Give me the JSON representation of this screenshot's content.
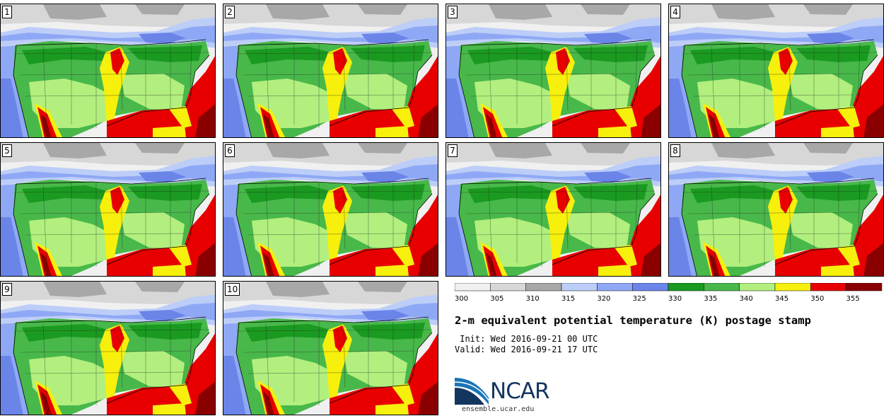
{
  "panels": [
    {
      "label": "1"
    },
    {
      "label": "2"
    },
    {
      "label": "3"
    },
    {
      "label": "4"
    },
    {
      "label": "5"
    },
    {
      "label": "6"
    },
    {
      "label": "7"
    },
    {
      "label": "8"
    },
    {
      "label": "9"
    },
    {
      "label": "10"
    }
  ],
  "colorbar": {
    "ticks": [
      "300",
      "305",
      "310",
      "315",
      "320",
      "325",
      "330",
      "335",
      "340",
      "345",
      "350",
      "355"
    ],
    "colors": [
      "#f0f0f0",
      "#d7d7d7",
      "#a8a8a8",
      "#bccdf8",
      "#8fa8f5",
      "#6b84e8",
      "#1a9a20",
      "#48b84a",
      "#b2ef7e",
      "#f7f00c",
      "#e80000",
      "#8a0000"
    ]
  },
  "title": "2-m equivalent potential temperature (K) postage stamp",
  "init": " Init: Wed 2016-09-21 00 UTC",
  "valid": "Valid: Wed 2016-09-21 17 UTC",
  "logo": {
    "text": "NCAR",
    "url": "ensemble.ucar.edu"
  }
}
